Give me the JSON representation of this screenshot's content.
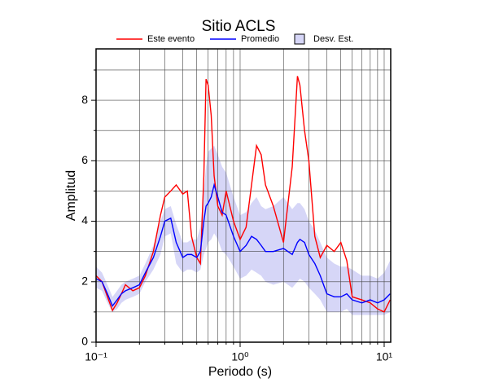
{
  "chart_data": {
    "type": "line",
    "title": "Sitio ACLS",
    "x_label": "Periodo (s)",
    "y_label": "Amplitud",
    "x_log": true,
    "grid": true,
    "legend": "top",
    "xlim": [
      0.1,
      11.1
    ],
    "ylim": [
      0,
      9.7
    ],
    "xticks": [
      {
        "value": 0.1,
        "label": "10⁻¹"
      },
      {
        "value": 1,
        "label": "10⁰"
      },
      {
        "value": 10,
        "label": "10¹"
      }
    ],
    "xminor_ticks": [
      0.2,
      0.3,
      0.4,
      0.5,
      0.6,
      0.7,
      0.8,
      0.9,
      2,
      3,
      4,
      5,
      6,
      7,
      8,
      9
    ],
    "yticks": [
      0,
      2,
      4,
      6,
      8
    ],
    "yminor_ticks": [
      1,
      3,
      5,
      7,
      9
    ],
    "x": [
      0.1,
      0.11,
      0.12,
      0.13,
      0.14,
      0.15,
      0.16,
      0.18,
      0.2,
      0.22,
      0.25,
      0.28,
      0.3,
      0.33,
      0.36,
      0.4,
      0.43,
      0.46,
      0.5,
      0.53,
      0.56,
      0.58,
      0.6,
      0.63,
      0.66,
      0.7,
      0.75,
      0.8,
      0.9,
      1.0,
      1.1,
      1.2,
      1.3,
      1.4,
      1.5,
      1.7,
      2.0,
      2.3,
      2.5,
      2.6,
      2.8,
      3.0,
      3.3,
      3.6,
      4.0,
      4.5,
      5.0,
      5.5,
      6.0,
      7,
      8,
      9,
      10,
      11
    ],
    "band": {
      "name": "Desv. Est.",
      "color": "#d6d6f7",
      "upper": [
        2.5,
        2.3,
        1.9,
        1.5,
        1.7,
        1.9,
        2.0,
        2.1,
        2.2,
        2.6,
        3.2,
        4.0,
        4.4,
        4.5,
        3.9,
        3.3,
        3.3,
        3.4,
        3.4,
        3.8,
        5.0,
        5.8,
        6.3,
        6.4,
        6.5,
        6.2,
        5.8,
        5.6,
        4.8,
        4.2,
        4.3,
        4.6,
        4.8,
        4.5,
        4.4,
        4.5,
        4.8,
        4.4,
        4.6,
        4.6,
        4.4,
        4.0,
        3.7,
        3.3,
        2.8,
        2.6,
        2.5,
        2.5,
        2.4,
        2.2,
        2.2,
        2.1,
        2.3,
        2.7
      ],
      "lower": [
        1.8,
        1.7,
        1.3,
        1.0,
        1.1,
        1.3,
        1.4,
        1.5,
        1.6,
        2.0,
        2.4,
        2.9,
        3.5,
        3.6,
        2.6,
        2.3,
        2.4,
        2.4,
        2.3,
        2.4,
        2.9,
        3.1,
        3.3,
        3.4,
        3.6,
        3.4,
        3.0,
        2.9,
        2.5,
        2.1,
        2.2,
        2.4,
        2.3,
        2.2,
        2.0,
        1.9,
        2.0,
        1.8,
        2.0,
        2.1,
        2.0,
        1.8,
        1.6,
        1.4,
        1.0,
        1.0,
        1.0,
        1.1,
        0.9,
        0.9,
        0.9,
        0.9,
        0.9,
        1.0
      ]
    },
    "series": [
      {
        "name": "Este evento",
        "color": "#ff0000",
        "values": [
          2.2,
          2.0,
          1.5,
          1.05,
          1.3,
          1.6,
          1.9,
          1.7,
          1.8,
          2.2,
          3.0,
          4.2,
          4.8,
          5.0,
          5.2,
          4.9,
          5.0,
          3.5,
          2.8,
          2.6,
          5.5,
          8.7,
          8.5,
          7.5,
          5.5,
          4.5,
          4.2,
          5.0,
          4.0,
          3.4,
          3.8,
          5.2,
          6.5,
          6.2,
          5.2,
          4.5,
          3.3,
          5.8,
          8.8,
          8.5,
          7.0,
          6.0,
          3.5,
          2.8,
          3.2,
          3.0,
          3.3,
          2.7,
          1.5,
          1.4,
          1.3,
          1.1,
          1.0,
          1.4
        ]
      },
      {
        "name": "Promedio",
        "color": "#0000ff",
        "values": [
          2.1,
          2.0,
          1.6,
          1.2,
          1.4,
          1.6,
          1.7,
          1.8,
          1.9,
          2.3,
          2.8,
          3.5,
          4.0,
          4.1,
          3.3,
          2.8,
          2.9,
          2.9,
          2.8,
          3.0,
          4.0,
          4.5,
          4.6,
          4.8,
          5.2,
          4.8,
          4.3,
          4.2,
          3.5,
          3.0,
          3.2,
          3.5,
          3.4,
          3.2,
          3.0,
          3.0,
          3.1,
          2.9,
          3.3,
          3.4,
          3.3,
          2.9,
          2.6,
          2.2,
          1.6,
          1.5,
          1.5,
          1.6,
          1.4,
          1.3,
          1.4,
          1.3,
          1.4,
          1.6
        ]
      }
    ]
  }
}
